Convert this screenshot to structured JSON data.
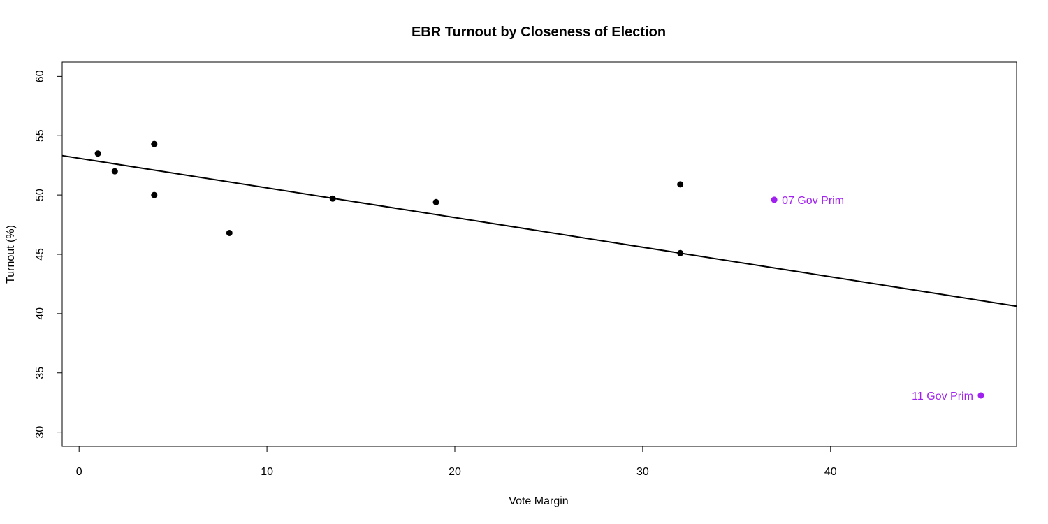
{
  "chart_data": {
    "type": "scatter",
    "title": "EBR Turnout by Closeness of Election",
    "xlabel": "Vote Margin",
    "ylabel": "Turnout (%)",
    "xlim": [
      -0.9,
      49.9
    ],
    "ylim": [
      28.8,
      61.2
    ],
    "x_ticks": [
      0,
      10,
      20,
      30,
      40
    ],
    "y_ticks": [
      30,
      35,
      40,
      45,
      50,
      55,
      60
    ],
    "grid": false,
    "points": [
      {
        "x": 1.0,
        "y": 53.5
      },
      {
        "x": 1.9,
        "y": 52.0
      },
      {
        "x": 4.0,
        "y": 54.3
      },
      {
        "x": 4.0,
        "y": 50.0
      },
      {
        "x": 8.0,
        "y": 46.8
      },
      {
        "x": 13.5,
        "y": 49.7
      },
      {
        "x": 19.0,
        "y": 49.4
      },
      {
        "x": 32.0,
        "y": 50.9
      },
      {
        "x": 32.0,
        "y": 45.1
      }
    ],
    "highlighted_points": [
      {
        "x": 37.0,
        "y": 49.6,
        "label": "07 Gov Prim",
        "label_side": "right"
      },
      {
        "x": 48.0,
        "y": 33.1,
        "label": "11 Gov Prim",
        "label_side": "left"
      }
    ],
    "fit_line": {
      "intercept": 53.1,
      "slope": -0.25
    },
    "colors": {
      "points": "#000000",
      "highlight": "#a020f0",
      "line": "#000000"
    }
  }
}
